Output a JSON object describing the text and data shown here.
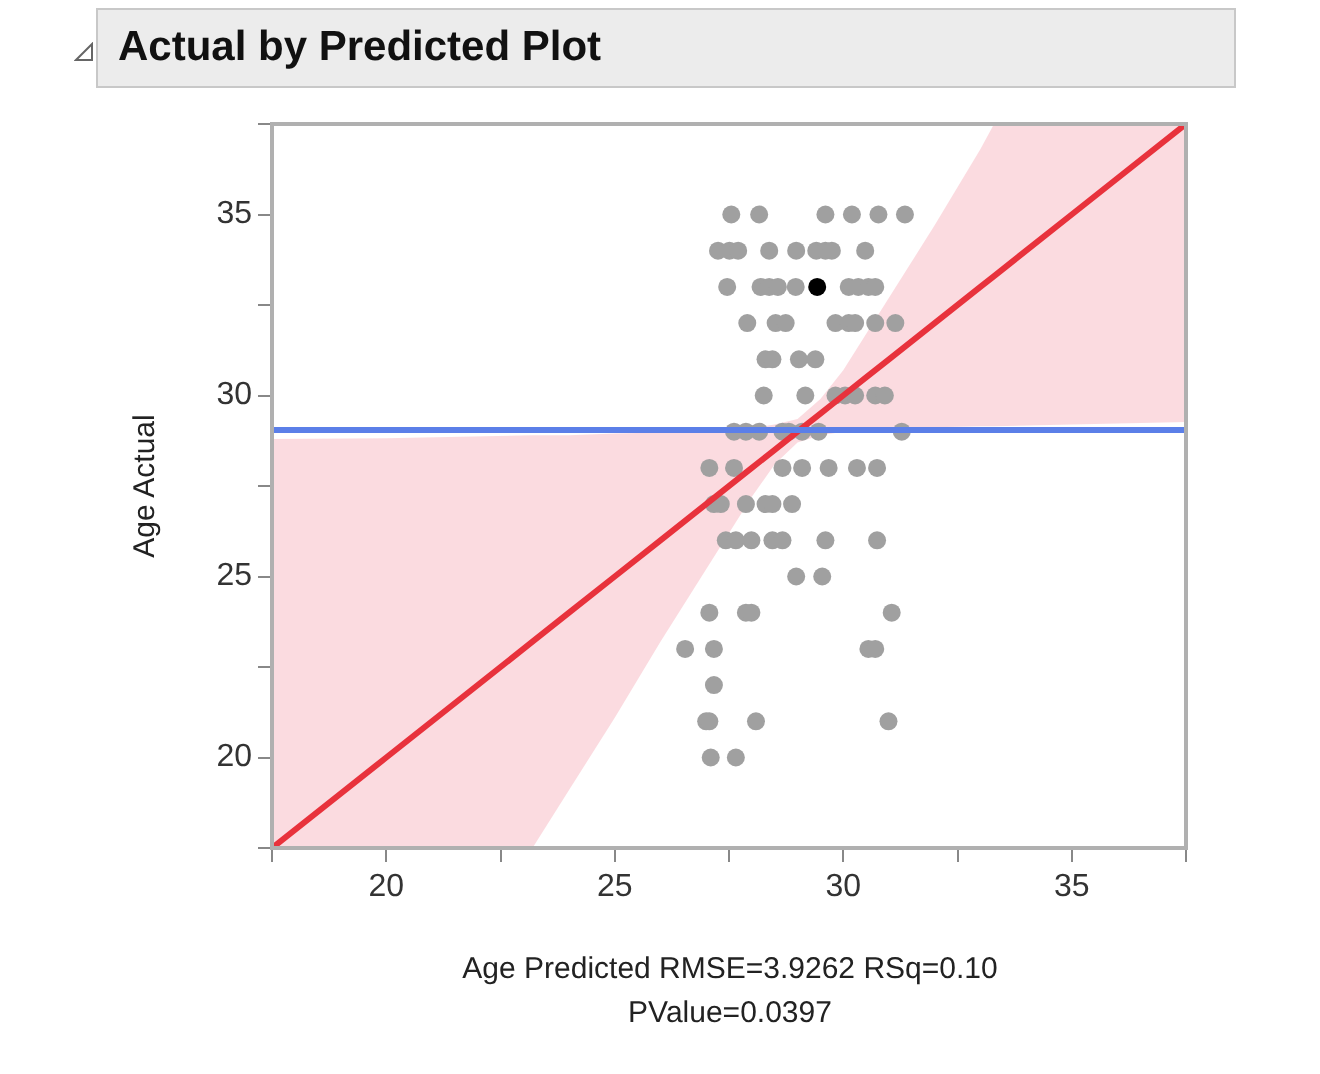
{
  "chart_data": {
    "type": "scatter",
    "title": "Actual by Predicted Plot",
    "xlabel": "Age Predicted RMSE=3.9262 RSq=0.10 PValue=0.0397",
    "ylabel": "Age Actual",
    "xlim": [
      17.5,
      37.5
    ],
    "ylim": [
      17.5,
      37.5
    ],
    "xticks": [
      {
        "value": 17.5,
        "label": null
      },
      20,
      {
        "value": 22.5,
        "label": null
      },
      25,
      {
        "value": 27.5,
        "label": null
      },
      30,
      {
        "value": 32.5,
        "label": null
      },
      35,
      {
        "value": 37.5,
        "label": null
      }
    ],
    "yticks": [
      {
        "value": 17.5,
        "label": null
      },
      20,
      {
        "value": 22.5,
        "label": null
      },
      25,
      {
        "value": 27.5,
        "label": null
      },
      30,
      {
        "value": 32.5,
        "label": null
      },
      35,
      {
        "value": 37.5,
        "label": null
      }
    ],
    "marker": "circle",
    "ref_lines": [
      {
        "axis": "y",
        "value": 29.05,
        "color": "#5b7fe8"
      }
    ],
    "series": [
      {
        "type": "line",
        "marker": "none",
        "color": "#e8323c",
        "x": [
          17.5,
          20,
          23.2,
          24,
          25,
          26,
          27,
          28,
          28.5,
          29,
          29.5,
          30,
          30.5,
          31,
          32,
          33,
          33.3,
          35,
          37.5
        ],
        "values": [
          17.5,
          20,
          23.2,
          24,
          25,
          26,
          27,
          28,
          28.5,
          29,
          29.5,
          30,
          30.5,
          31,
          32,
          33,
          33.3,
          35,
          37.5
        ],
        "lower": [
          17.5,
          17.5,
          17.5,
          19.1,
          21.1,
          23.2,
          25.2,
          27.2,
          28.1,
          28.7,
          28.9,
          29.0,
          29.05,
          29.1,
          29.12,
          29.15,
          29.15,
          29.2,
          29.27
        ],
        "upper": [
          28.8,
          28.82,
          28.9,
          28.9,
          28.95,
          28.98,
          29.0,
          29.1,
          29.2,
          29.35,
          29.9,
          30.7,
          31.7,
          32.7,
          34.7,
          36.8,
          37.5,
          37.5,
          37.5
        ]
      },
      {
        "color": "#a0a0a0",
        "x": [
          27.55,
          28.16,
          29.61,
          30.19,
          30.77,
          31.35,
          27.26,
          27.51,
          27.7,
          28.38,
          28.97,
          29.41,
          29.61,
          29.75,
          30.48,
          27.46,
          28.19,
          28.38,
          28.57,
          28.96,
          30.12,
          30.33,
          30.55,
          30.7,
          27.9,
          28.52,
          28.74,
          29.83,
          30.12,
          30.26,
          30.7,
          31.14,
          28.3,
          28.45,
          29.03,
          29.39,
          28.26,
          29.17,
          29.83,
          30.04,
          30.26,
          30.7,
          30.91,
          27.61,
          27.87,
          28.16,
          28.67,
          28.81,
          29.1,
          29.46,
          31.28,
          27.07,
          27.61,
          28.67,
          29.1,
          29.68,
          30.3,
          30.74,
          27.17,
          27.32,
          27.87,
          28.3,
          28.45,
          28.88,
          27.43,
          27.65,
          27.99,
          28.45,
          28.67,
          29.61,
          30.74,
          28.97,
          29.54,
          27.07,
          27.87,
          27.99,
          31.06,
          26.54,
          27.17,
          30.55,
          30.7,
          27.17,
          27.0,
          27.07,
          28.09,
          30.99,
          27.1,
          27.65
        ],
        "values": [
          35,
          35,
          35,
          35,
          35,
          35,
          34,
          34,
          34,
          34,
          34,
          34,
          34,
          34,
          34,
          33,
          33,
          33,
          33,
          33,
          33,
          33,
          33,
          33,
          32,
          32,
          32,
          32,
          32,
          32,
          32,
          32,
          31,
          31,
          31,
          31,
          30,
          30,
          30,
          30,
          30,
          30,
          30,
          29,
          29,
          29,
          29,
          29,
          29,
          29,
          29,
          28,
          28,
          28,
          28,
          28,
          28,
          28,
          27,
          27,
          27,
          27,
          27,
          27,
          26,
          26,
          26,
          26,
          26,
          26,
          26,
          25,
          25,
          24,
          24,
          24,
          24,
          23,
          23,
          23,
          23,
          22,
          21,
          21,
          21,
          21,
          20,
          20
        ]
      },
      {
        "color": "#000000",
        "x": [
          29.43
        ],
        "values": [
          33
        ]
      }
    ]
  }
}
